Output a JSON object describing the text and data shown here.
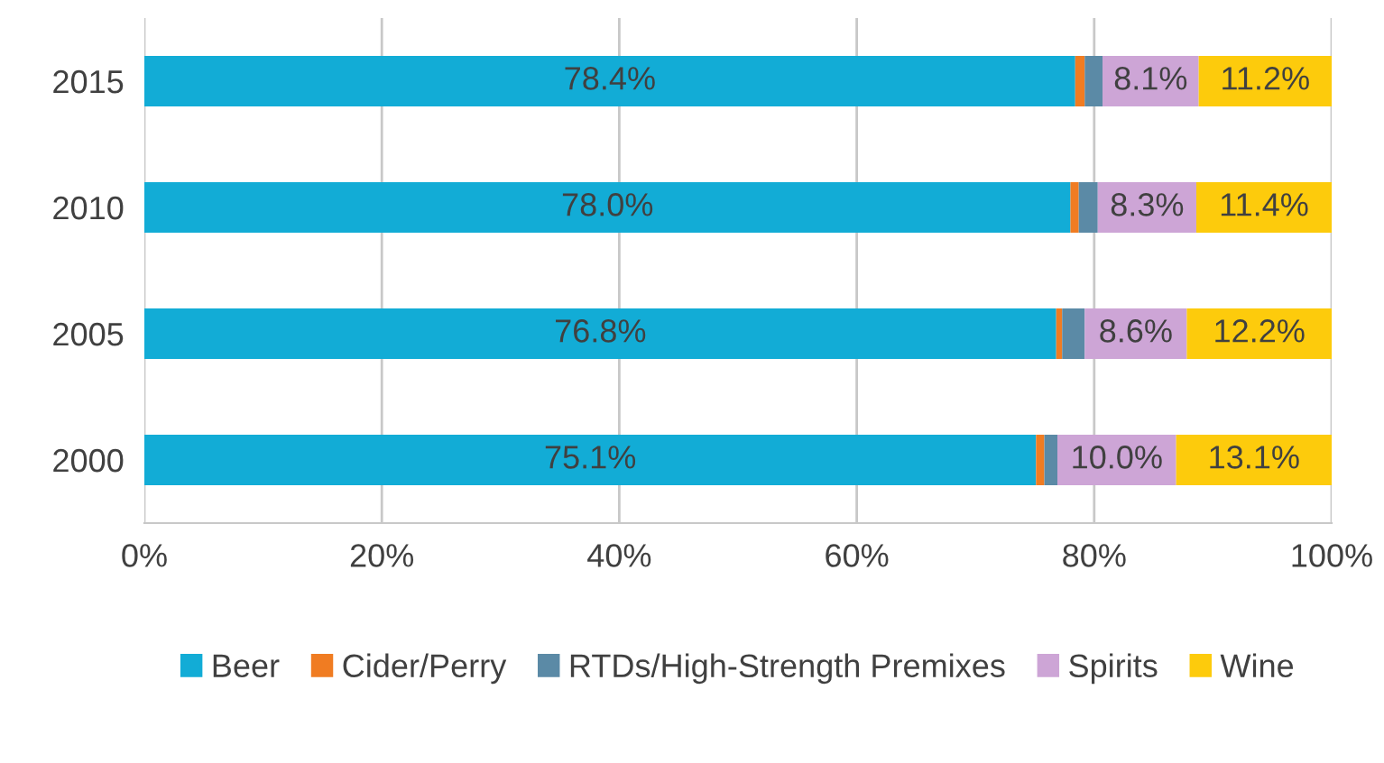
{
  "chart_data": {
    "type": "bar",
    "orientation": "horizontal",
    "stacked": true,
    "categories": [
      "2015",
      "2010",
      "2005",
      "2000"
    ],
    "series": [
      {
        "name": "Beer",
        "color": "#12acd6",
        "values": [
          78.4,
          78.0,
          76.8,
          75.1
        ],
        "value_labels": [
          "78.4%",
          "78.0%",
          "76.8%",
          "75.1%"
        ]
      },
      {
        "name": "Cider/Perry",
        "color": "#f07c22",
        "values": [
          0.8,
          0.7,
          0.5,
          0.7
        ],
        "value_labels": [
          null,
          null,
          null,
          null
        ]
      },
      {
        "name": "RTDs/High-Strength Premixes",
        "color": "#5b8aa6",
        "values": [
          1.5,
          1.6,
          1.9,
          1.1
        ],
        "value_labels": [
          null,
          null,
          null,
          null
        ]
      },
      {
        "name": "Spirits",
        "color": "#cda5d6",
        "values": [
          8.1,
          8.3,
          8.6,
          10.0
        ],
        "value_labels": [
          "8.1%",
          "8.3%",
          "8.6%",
          "10.0%"
        ]
      },
      {
        "name": "Wine",
        "color": "#fdcb0c",
        "values": [
          11.2,
          11.4,
          12.2,
          13.1
        ],
        "value_labels": [
          "11.2%",
          "11.4%",
          "12.2%",
          "13.1%"
        ]
      }
    ],
    "xlim": [
      0,
      100
    ],
    "xticks": [
      {
        "value": 0,
        "label": "0%"
      },
      {
        "value": 20,
        "label": "20%"
      },
      {
        "value": 40,
        "label": "40%"
      },
      {
        "value": 60,
        "label": "60%"
      },
      {
        "value": 80,
        "label": "80%"
      },
      {
        "value": 100,
        "label": "100%"
      }
    ],
    "grid": "x",
    "legend": "bottom"
  }
}
